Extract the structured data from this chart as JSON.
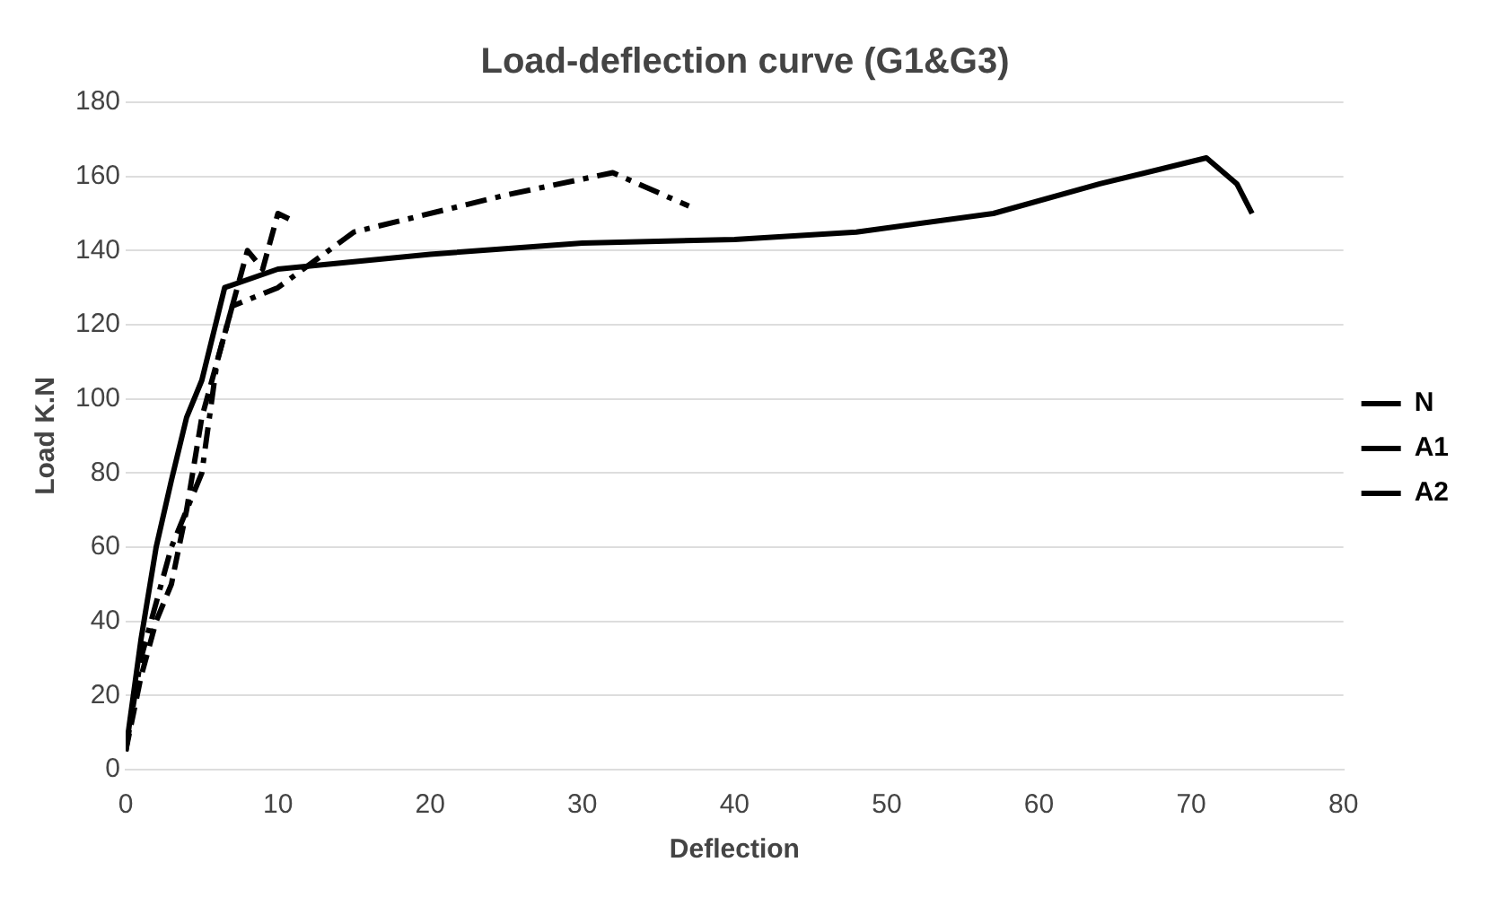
{
  "chart_data": {
    "type": "line",
    "title": "Load-deflection curve (G1&G3)",
    "xlabel": "Deflection",
    "ylabel": "Load K.N",
    "xlim": [
      0,
      80
    ],
    "xticks": [
      0,
      10,
      20,
      30,
      40,
      50,
      60,
      70,
      80
    ],
    "ylim": [
      0,
      180
    ],
    "yticks": [
      0,
      20,
      40,
      60,
      80,
      100,
      120,
      140,
      160,
      180
    ],
    "grid": "y",
    "legend": "right",
    "marker": "none",
    "series": [
      {
        "name": "N",
        "color": "#000000",
        "line_style": "solid",
        "x": [
          0,
          1,
          2,
          3,
          4,
          5,
          6.5,
          10,
          20,
          30,
          40,
          48,
          57,
          64,
          71,
          73,
          74
        ],
        "values": [
          5,
          35,
          60,
          78,
          95,
          105,
          130,
          135,
          139,
          142,
          143,
          145,
          150,
          158,
          165,
          158,
          150
        ]
      },
      {
        "name": "A1",
        "color": "#000000",
        "line_style": "dashed",
        "x": [
          0,
          1,
          2,
          3,
          4,
          5,
          6,
          7,
          8,
          9,
          10,
          11
        ],
        "values": [
          5,
          25,
          40,
          50,
          70,
          95,
          110,
          125,
          140,
          135,
          150,
          148
        ]
      },
      {
        "name": "A2",
        "color": "#000000",
        "line_style": "dotted",
        "x": [
          0,
          1,
          3,
          5,
          6,
          7,
          10,
          15,
          25,
          32,
          37
        ],
        "values": [
          5,
          30,
          60,
          80,
          110,
          125,
          130,
          145,
          155,
          161,
          152
        ]
      }
    ]
  }
}
